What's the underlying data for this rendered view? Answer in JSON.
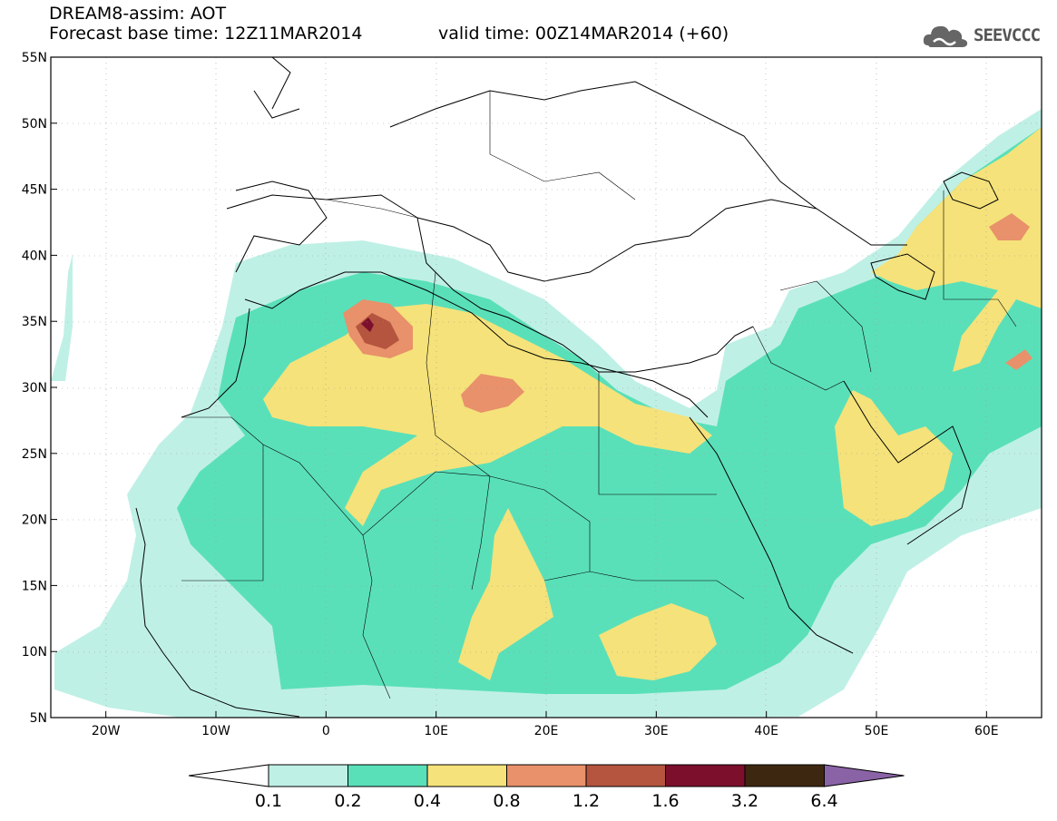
{
  "header": {
    "title": "DREAM8-assim: AOT",
    "base_time": "Forecast base time: 12Z11MAR2014",
    "valid_time": "valid time: 00Z14MAR2014 (+60)"
  },
  "logo": {
    "name": "cloud-logo-icon",
    "text": "SEEVCCC"
  },
  "map": {
    "lat_labels": [
      "55N",
      "50N",
      "45N",
      "40N",
      "35N",
      "30N",
      "25N",
      "20N",
      "15N",
      "10N",
      "5N"
    ],
    "lat_values": [
      55,
      50,
      45,
      40,
      35,
      30,
      25,
      20,
      15,
      10,
      5
    ],
    "lon_labels": [
      "20W",
      "10W",
      "0",
      "10E",
      "20E",
      "30E",
      "40E",
      "50E",
      "60E"
    ],
    "lon_values": [
      -20,
      -10,
      0,
      10,
      20,
      30,
      40,
      50,
      60
    ],
    "extent": {
      "lon_min": -25,
      "lon_max": 65,
      "lat_min": 5,
      "lat_max": 55
    }
  },
  "colorbar": {
    "levels": [
      "0.1",
      "0.2",
      "0.4",
      "0.8",
      "1.2",
      "1.6",
      "3.2",
      "6.4"
    ],
    "colors": [
      "#bff0e6",
      "#5ae0b9",
      "#f5e27a",
      "#e8916a",
      "#b5543f",
      "#7c0f2c",
      "#3e2710",
      "#8a63a6"
    ]
  }
}
